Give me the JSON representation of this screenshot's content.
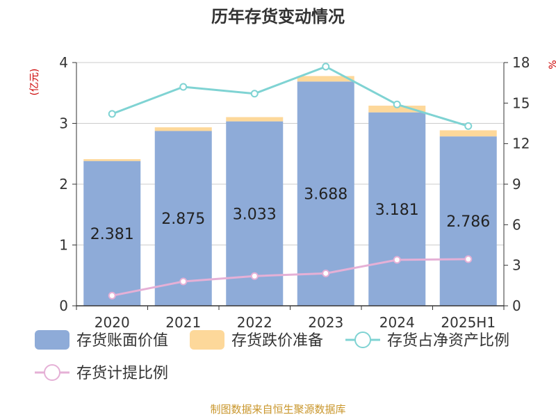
{
  "chart_data": {
    "type": "bar",
    "title": "历年存货变动情况",
    "categories": [
      "2020",
      "2021",
      "2022",
      "2023",
      "2024",
      "2025H1"
    ],
    "y_left": {
      "unit": "(亿元)",
      "range": [
        0,
        4
      ],
      "ticks": [
        "0",
        "1",
        "2",
        "3",
        "4"
      ]
    },
    "y_right": {
      "unit": "%",
      "range": [
        0,
        18
      ],
      "ticks": [
        "0",
        "3",
        "6",
        "9",
        "12",
        "15",
        "18"
      ]
    },
    "grid": true,
    "legend_position": "bottom",
    "series": [
      {
        "name": "存货账面价值",
        "type": "bar",
        "axis": "left",
        "stack": "inv",
        "color": "#8eabd8",
        "values": [
          2.381,
          2.875,
          3.033,
          3.688,
          3.181,
          2.786
        ],
        "labels": [
          "2.381",
          "2.875",
          "3.033",
          "3.688",
          "3.181",
          "2.786"
        ]
      },
      {
        "name": "存货跌价准备",
        "type": "bar",
        "axis": "left",
        "stack": "inv",
        "color": "#fdd89a",
        "values": [
          0.03,
          0.06,
          0.07,
          0.09,
          0.11,
          0.1
        ]
      },
      {
        "name": "存货占净资产比例",
        "type": "line",
        "axis": "right",
        "color": "#7fd3d3",
        "values": [
          14.2,
          16.2,
          15.7,
          17.7,
          14.9,
          13.3
        ]
      },
      {
        "name": "存货计提比例",
        "type": "line",
        "axis": "right",
        "color": "#e5b0d6",
        "values": [
          0.75,
          1.8,
          2.2,
          2.4,
          3.4,
          3.45
        ]
      }
    ]
  },
  "footer": {
    "source": "制图数据来自恒生聚源数据库"
  }
}
